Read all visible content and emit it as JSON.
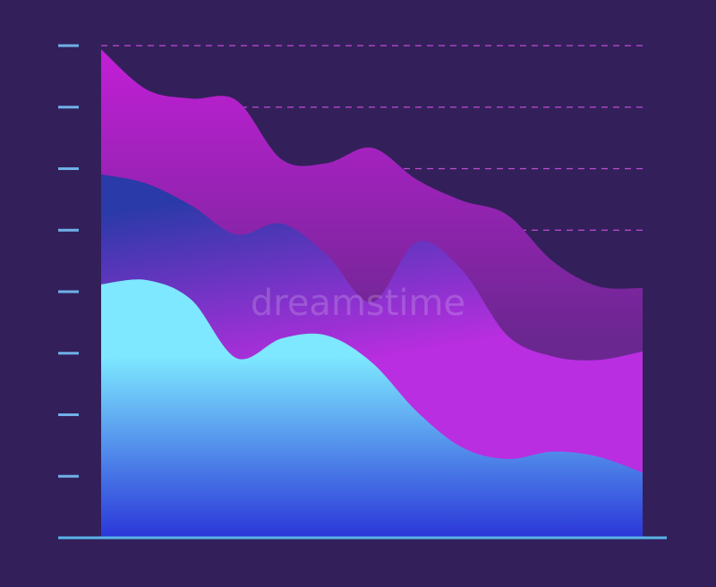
{
  "chart_data": {
    "type": "area",
    "x": [
      0,
      1,
      2,
      3,
      4,
      5,
      6,
      7,
      8,
      9,
      10,
      11,
      12
    ],
    "series": [
      {
        "color": "#c21fd6",
        "values": [
          7.94,
          7.29,
          7.14,
          7.11,
          6.15,
          6.09,
          6.34,
          5.82,
          5.48,
          5.25,
          4.5,
          4.09,
          4.06
        ]
      },
      {
        "color": "#2a3aa8",
        "values": [
          5.91,
          5.76,
          5.4,
          4.93,
          5.11,
          4.6,
          3.83,
          4.81,
          4.35,
          3.29,
          2.95,
          2.89,
          3.03
        ]
      },
      {
        "color": "#7de8ff",
        "values": [
          4.12,
          4.19,
          3.87,
          2.92,
          3.24,
          3.29,
          2.85,
          2.05,
          1.47,
          1.28,
          1.4,
          1.32,
          1.06
        ]
      }
    ],
    "xlim": [
      0,
      12
    ],
    "ylim": [
      0,
      8
    ],
    "yticks": [
      1,
      2,
      3,
      4,
      5,
      6,
      7,
      8
    ],
    "grid": true
  },
  "watermark": "dreamstime"
}
